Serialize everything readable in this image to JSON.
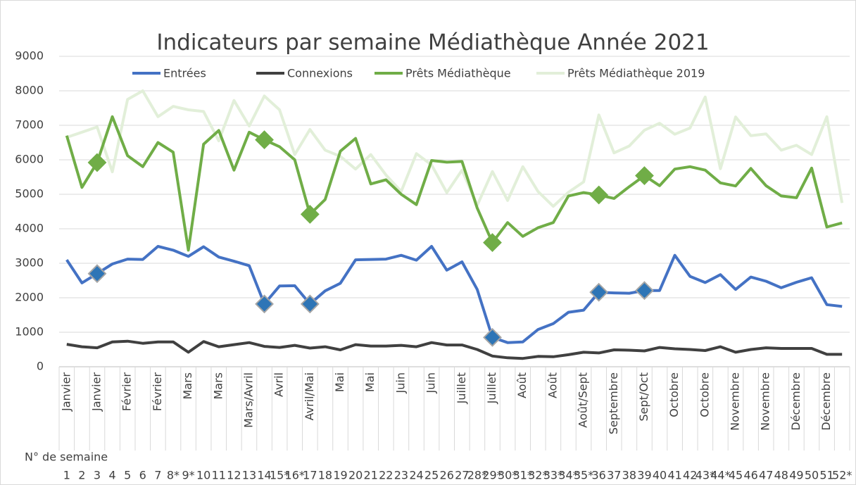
{
  "chart_data": {
    "type": "line",
    "title": "Indicateurs par semaine Médiathèque Année 2021",
    "categories": [
      "Janvier",
      null,
      "Janvier",
      null,
      "Février",
      null,
      "Février",
      null,
      "Mars",
      null,
      "Mars",
      null,
      "Mars/Avril",
      null,
      "Avril",
      null,
      "Avril/Mai",
      null,
      "Mai",
      null,
      "Mai",
      null,
      "Juin",
      null,
      "Juin",
      null,
      "Juillet",
      null,
      "Juillet",
      null,
      "Août",
      null,
      "Août",
      null,
      "Août/Sept",
      null,
      "Septembre",
      null,
      "Sept/Oct",
      null,
      "Octobre",
      null,
      "Octobre",
      null,
      "Novembre",
      null,
      "Novembre",
      null,
      "Décembre",
      null,
      "Décembre",
      null
    ],
    "week_axis_label": "N° de semaine",
    "weeks": [
      "1",
      "2",
      "3",
      "4",
      "5",
      "6",
      "7",
      "8*",
      "9*",
      "10",
      "11",
      "12",
      "13",
      "14",
      "15*",
      "16*",
      "17",
      "18",
      "19",
      "20",
      "21",
      "22",
      "23",
      "24",
      "25",
      "26",
      "27",
      "28*",
      "29*",
      "30*",
      "31*",
      "32*",
      "33*",
      "34*",
      "35*",
      "36",
      "37",
      "38",
      "39",
      "40",
      "41",
      "42",
      "43*",
      "44*",
      "45",
      "46",
      "47",
      "48",
      "49",
      "50",
      "51",
      "52*"
    ],
    "series": [
      {
        "name": "Entrées",
        "color": "#4472c4",
        "marker_color": "#2e75b6",
        "marker_indices": [
          2,
          13,
          16,
          28,
          35,
          38
        ],
        "values": [
          3100,
          2430,
          2700,
          2980,
          3120,
          3110,
          3490,
          3380,
          3200,
          3480,
          3180,
          3060,
          2930,
          1820,
          2340,
          2350,
          1820,
          2200,
          2420,
          3100,
          3110,
          3120,
          3230,
          3090,
          3490,
          2800,
          3040,
          2240,
          850,
          700,
          720,
          1080,
          1250,
          1580,
          1640,
          2160,
          2140,
          2130,
          2210,
          2210,
          3230,
          2620,
          2440,
          2670,
          2240,
          2600,
          2480,
          2290,
          2450,
          2580,
          1800,
          1750
        ]
      },
      {
        "name": "Connexions",
        "color": "#404040",
        "values": [
          650,
          580,
          550,
          720,
          740,
          680,
          720,
          720,
          420,
          730,
          580,
          640,
          700,
          590,
          560,
          620,
          540,
          580,
          490,
          640,
          600,
          600,
          620,
          580,
          700,
          630,
          630,
          500,
          310,
          260,
          240,
          300,
          290,
          350,
          420,
          400,
          490,
          480,
          460,
          560,
          520,
          500,
          470,
          580,
          420,
          500,
          550,
          530,
          530,
          530,
          360,
          360
        ]
      },
      {
        "name": "Prêts Médiathèque",
        "color": "#70ad47",
        "marker_color": "#70ad47",
        "marker_indices": [
          2,
          13,
          16,
          28,
          35,
          38
        ],
        "values": [
          6700,
          5200,
          5920,
          7250,
          6120,
          5800,
          6500,
          6220,
          3380,
          6450,
          6850,
          5700,
          6800,
          6580,
          6380,
          6000,
          4420,
          4850,
          6250,
          6620,
          5300,
          5420,
          5000,
          4700,
          5980,
          5930,
          5950,
          4600,
          3600,
          4180,
          3780,
          4030,
          4180,
          4950,
          5050,
          4980,
          4880,
          5220,
          5540,
          5250,
          5730,
          5800,
          5700,
          5330,
          5240,
          5750,
          5250,
          4950,
          4900,
          5760,
          4050,
          4170
        ]
      },
      {
        "name": "Prêts Médiathèque 2019",
        "color": "#e2efd9",
        "values": [
          6650,
          6800,
          6950,
          5650,
          7750,
          8000,
          7250,
          7550,
          7450,
          7400,
          6550,
          7720,
          6980,
          7850,
          7450,
          6150,
          6880,
          6280,
          6100,
          5730,
          6150,
          5560,
          5080,
          6180,
          5850,
          5050,
          5700,
          4680,
          5660,
          4820,
          5800,
          5080,
          4650,
          5060,
          5360,
          7300,
          6200,
          6400,
          6860,
          7060,
          6740,
          6920,
          7820,
          5740,
          7240,
          6700,
          6750,
          6280,
          6420,
          6150,
          7250,
          4750
        ]
      }
    ],
    "ylim": [
      0,
      9000
    ],
    "yticks": [
      0,
      1000,
      2000,
      3000,
      4000,
      5000,
      6000,
      7000,
      8000,
      9000
    ],
    "grid": true,
    "legend": "top"
  }
}
